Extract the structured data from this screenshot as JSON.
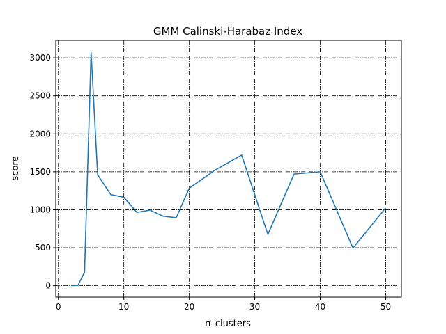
{
  "chart_data": {
    "type": "line",
    "title": "GMM Calinski-Harabaz Index",
    "xlabel": "n_clusters",
    "ylabel": "score",
    "xlim": [
      -0.4,
      52.4
    ],
    "ylim": [
      -150,
      3230
    ],
    "xticks": [
      0,
      10,
      20,
      30,
      40,
      50
    ],
    "yticks": [
      0,
      500,
      1000,
      1500,
      2000,
      2500,
      3000
    ],
    "grid": true,
    "grid_style": "dash-dot",
    "line_color": "#1f77b4",
    "x": [
      2,
      3,
      4,
      5,
      6,
      8,
      10,
      12,
      14,
      16,
      18,
      20,
      24,
      28,
      32,
      36,
      40,
      45,
      50
    ],
    "y": [
      0,
      5,
      180,
      3070,
      1460,
      1200,
      1165,
      965,
      995,
      915,
      895,
      1285,
      1525,
      1720,
      675,
      1470,
      1500,
      495,
      1025
    ]
  }
}
